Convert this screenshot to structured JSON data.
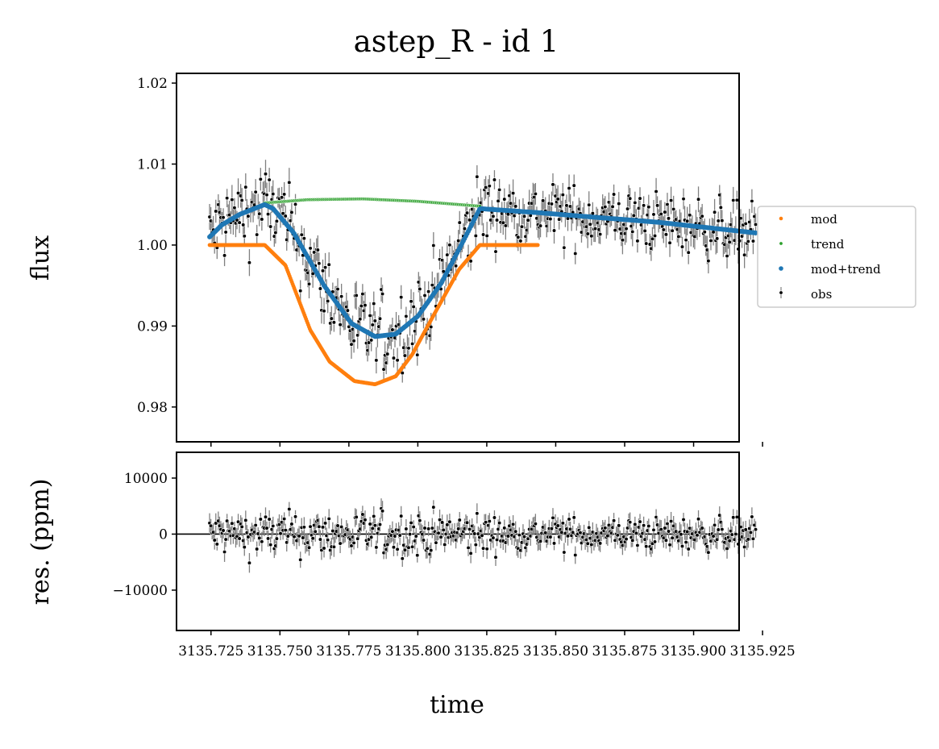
{
  "chart_data": [
    {
      "type": "scatter",
      "title": "astep_R - id 1",
      "xlabel": "",
      "ylabel": "flux",
      "xlim": [
        3135.7125,
        3135.9165
      ],
      "ylim": [
        0.9757,
        1.0212
      ],
      "y_ticks": [
        "0.98",
        "0.99",
        "1.00",
        "1.01",
        "1.02"
      ],
      "legend": {
        "placement": "right-outside",
        "entries": [
          {
            "label": "mod",
            "color": "#ff7f0e"
          },
          {
            "label": "trend",
            "color": "#2ca02c"
          },
          {
            "label": "mod+trend",
            "color": "#1f77b4"
          },
          {
            "label": "obs",
            "color": "#000000"
          }
        ]
      },
      "series": [
        {
          "name": "mod",
          "color": "#ff7f0e",
          "x": [
            3135.7245,
            3135.7445,
            3135.752,
            3135.761,
            3135.768,
            3135.777,
            3135.7845,
            3135.792,
            3135.798,
            3135.806,
            3135.815,
            3135.8225,
            3135.8435
          ],
          "y": [
            1.0,
            1.0,
            0.9975,
            0.9895,
            0.9856,
            0.9832,
            0.9828,
            0.9838,
            0.9865,
            0.9915,
            0.997,
            1.0,
            1.0
          ]
        },
        {
          "name": "trend",
          "color": "#2ca02c",
          "x": [
            3135.7445,
            3135.76,
            3135.78,
            3135.8,
            3135.8225
          ],
          "y": [
            1.0052,
            1.0056,
            1.0057,
            1.0054,
            1.0048
          ]
        },
        {
          "name": "mod+trend",
          "color": "#1f77b4",
          "x": [
            3135.7245,
            3135.729,
            3135.7355,
            3135.7445,
            3135.7475,
            3135.755,
            3135.766,
            3135.776,
            3135.7845,
            3135.792,
            3135.8,
            3135.8085,
            3135.8165,
            3135.8225,
            3135.8435,
            3135.8875,
            3135.9225
          ],
          "y": [
            1.001,
            1.0025,
            1.0038,
            1.005,
            1.0045,
            1.0015,
            0.995,
            0.9903,
            0.9887,
            0.989,
            0.9912,
            0.9953,
            1.0005,
            1.0045,
            1.004,
            1.0028,
            1.0015
          ]
        }
      ],
      "obs": {
        "name": "obs",
        "x_range": [
          3135.7245,
          3135.9225
        ],
        "count": 440,
        "noise_scatter": 0.0045,
        "noise_scatter_after": 0.0033,
        "error_bar": 0.0014
      }
    },
    {
      "type": "scatter",
      "xlabel": "time",
      "ylabel": "res. (ppm)",
      "xlim": [
        3135.7125,
        3135.9165
      ],
      "ylim": [
        -17200,
        14600
      ],
      "y_ticks": [
        "−10000",
        "0",
        "10000"
      ],
      "x_ticks": [
        "3135.725",
        "3135.750",
        "3135.775",
        "3135.800",
        "3135.825",
        "3135.850",
        "3135.875",
        "3135.900",
        "3135.925"
      ],
      "zero_line": 0,
      "residuals": {
        "name": "res",
        "x_range": [
          3135.7245,
          3135.9225
        ],
        "count": 440,
        "scatter_ppm": 3500,
        "error_bar_ppm": 1400
      }
    }
  ]
}
